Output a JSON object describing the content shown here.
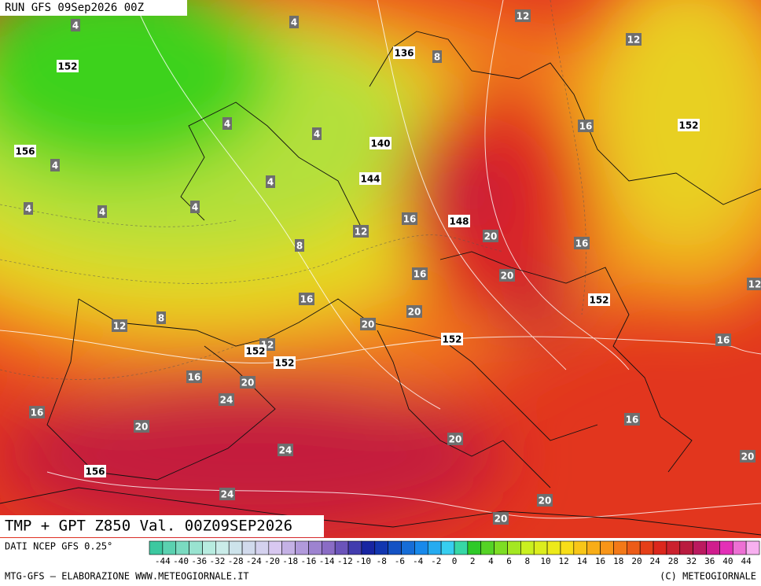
{
  "header": {
    "run": "RUN GFS 09Sep2026 00Z"
  },
  "map": {
    "temperature_labels": [
      4,
      4,
      8,
      12,
      12,
      4,
      4,
      16,
      4,
      4,
      4,
      4,
      4,
      16,
      12,
      20,
      8,
      16,
      16,
      20,
      12,
      16,
      20,
      8,
      12,
      20,
      12,
      16,
      16,
      20,
      24,
      16,
      16,
      20,
      20,
      24,
      20,
      24,
      20,
      20
    ],
    "height_labels": [
      152,
      136,
      152,
      156,
      140,
      144,
      148,
      152,
      152,
      152,
      152,
      156
    ]
  },
  "title": "TMP + GPT Z850 Val. 00Z09SEP2026",
  "legend": {
    "source": "DATI NCEP GFS 0.25°",
    "ticks": [
      -44,
      -40,
      -36,
      -32,
      -28,
      -24,
      -20,
      -18,
      -16,
      -14,
      -12,
      -10,
      -8,
      -6,
      -4,
      -2,
      0,
      2,
      4,
      6,
      8,
      10,
      12,
      14,
      16,
      18,
      20,
      24,
      28,
      32,
      36,
      40,
      44
    ]
  },
  "footer": {
    "left": "MTG-GFS — ELABORAZIONE WWW.METEOGIORNALE.IT",
    "right": "(C) METEOGIORNALE"
  }
}
